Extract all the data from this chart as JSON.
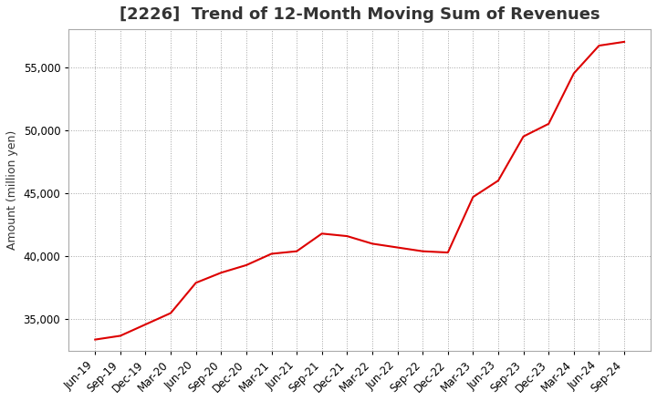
{
  "title": "[2226]  Trend of 12-Month Moving Sum of Revenues",
  "ylabel": "Amount (million yen)",
  "line_color": "#dd0000",
  "background_color": "#ffffff",
  "plot_background": "#ffffff",
  "grid_color": "#999999",
  "ylim": [
    32500,
    58000
  ],
  "yticks": [
    35000,
    40000,
    45000,
    50000,
    55000
  ],
  "x_labels": [
    "Jun-19",
    "Sep-19",
    "Dec-19",
    "Mar-20",
    "Jun-20",
    "Sep-20",
    "Dec-20",
    "Mar-21",
    "Jun-21",
    "Sep-21",
    "Dec-21",
    "Mar-22",
    "Jun-22",
    "Sep-22",
    "Dec-22",
    "Mar-23",
    "Jun-23",
    "Sep-23",
    "Dec-23",
    "Mar-24",
    "Jun-24",
    "Sep-24"
  ],
  "values": [
    33400,
    33700,
    34600,
    35500,
    37900,
    38700,
    39300,
    40200,
    40400,
    41800,
    41600,
    41000,
    40700,
    40400,
    40300,
    44700,
    46000,
    49500,
    50500,
    54500,
    56700,
    57000
  ],
  "title_color": "#333333",
  "title_fontsize": 13,
  "tick_fontsize": 8.5,
  "ylabel_fontsize": 9
}
